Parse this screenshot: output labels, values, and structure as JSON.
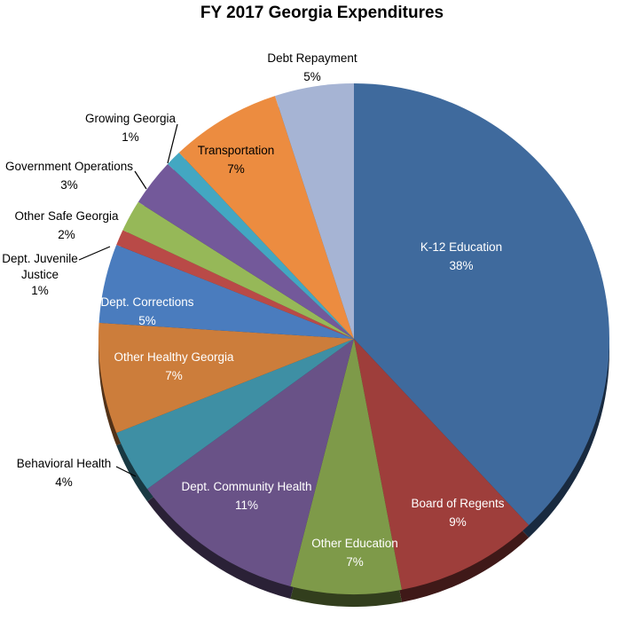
{
  "title": "FY 2017 Georgia Expenditures",
  "chart_data": {
    "type": "pie",
    "title": "FY 2017 Georgia Expenditures",
    "value_suffix": "%",
    "start_angle_deg": 0,
    "direction": "clockwise",
    "legend": "none",
    "style": "3d-bottom-rim",
    "background_color": "#ffffff",
    "title_color": "#000000",
    "slices": [
      {
        "label": "K-12 Education",
        "value": 38,
        "color": "#3F6A9D",
        "label_placement": "inside",
        "label_color": "#ffffff"
      },
      {
        "label": "Board of Regents",
        "value": 9,
        "color": "#9E3E3B",
        "label_placement": "inside",
        "label_color": "#ffffff"
      },
      {
        "label": "Other Education",
        "value": 7,
        "color": "#7E9A49",
        "label_placement": "inside",
        "label_color": "#ffffff"
      },
      {
        "label": "Dept. Community Health",
        "value": 11,
        "color": "#695287",
        "label_placement": "inside",
        "label_color": "#ffffff"
      },
      {
        "label": "Behavioral Health",
        "value": 4,
        "color": "#3E8FA4",
        "label_placement": "outside",
        "label_color": "#000000"
      },
      {
        "label": "Other Healthy Georgia",
        "value": 7,
        "color": "#CC7D3B",
        "label_placement": "inside",
        "label_color": "#ffffff"
      },
      {
        "label": "Dept. Corrections",
        "value": 5,
        "color": "#4A7CBE",
        "label_placement": "inside",
        "label_color": "#ffffff"
      },
      {
        "label": "Dept. Juvenile Justice",
        "value": 1,
        "color": "#B94A47",
        "label_placement": "outside",
        "label_color": "#000000"
      },
      {
        "label": "Other Safe Georgia",
        "value": 2,
        "color": "#96B858",
        "label_placement": "outside",
        "label_color": "#000000"
      },
      {
        "label": "Government Operations",
        "value": 3,
        "color": "#73599A",
        "label_placement": "outside",
        "label_color": "#000000"
      },
      {
        "label": "Growing Georgia",
        "value": 1,
        "color": "#43A7C2",
        "label_placement": "outside",
        "label_color": "#000000"
      },
      {
        "label": "Transportation",
        "value": 7,
        "color": "#EC8C40",
        "label_placement": "inside",
        "label_color": "#000000"
      },
      {
        "label": "Debt Repayment",
        "value": 5,
        "color": "#A6B4D4",
        "label_placement": "outside",
        "label_color": "#000000"
      }
    ]
  }
}
